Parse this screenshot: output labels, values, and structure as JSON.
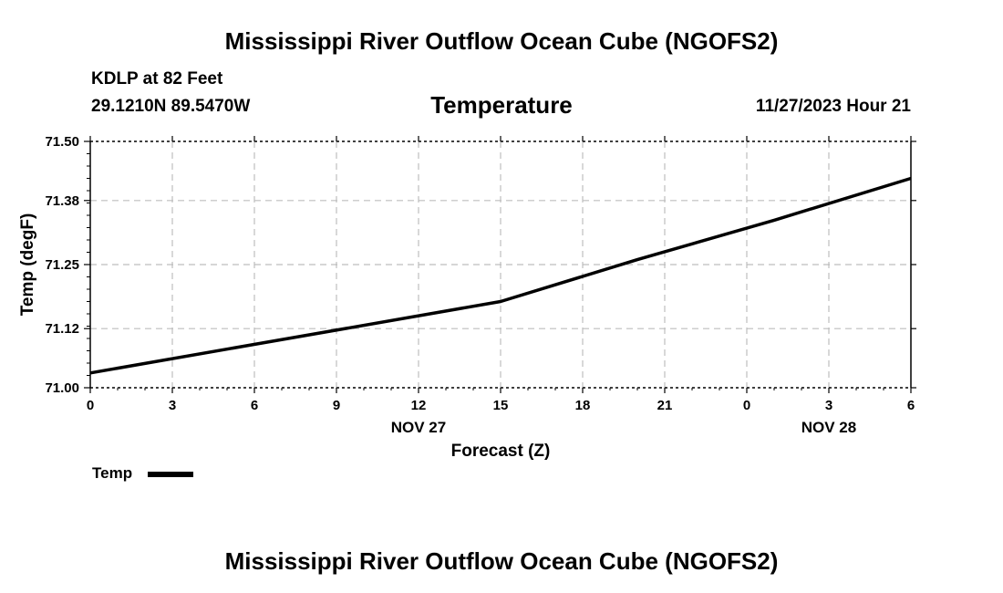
{
  "header": {
    "title": "Mississippi River Outflow Ocean Cube (NGOFS2)",
    "station": "KDLP at 82 Feet",
    "coords": "29.1210N  89.5470W",
    "panel_title": "Temperature",
    "datetime": "11/27/2023 Hour 21"
  },
  "legend": {
    "label": "Temp"
  },
  "footer": {
    "title": "Mississippi River Outflow Ocean Cube (NGOFS2)"
  },
  "chart_data": {
    "type": "line",
    "title": "Temperature",
    "xlabel": "Forecast (Z)",
    "ylabel": "Temp (degF)",
    "x": [
      0,
      3,
      6,
      9,
      12,
      15,
      18,
      21,
      24,
      27,
      30
    ],
    "xtick_labels": [
      "0",
      "3",
      "6",
      "9",
      "12",
      "15",
      "18",
      "21",
      "0",
      "3",
      "6"
    ],
    "date_labels": [
      {
        "x": 12,
        "label": "NOV 27"
      },
      {
        "x": 27,
        "label": "NOV 28"
      }
    ],
    "xlim": [
      0,
      30
    ],
    "ylim": [
      71.0,
      71.5
    ],
    "yticks": [
      71.0,
      71.12,
      71.25,
      71.38,
      71.5
    ],
    "ytick_labels": [
      "71.00",
      "71.12",
      "71.25",
      "71.38",
      "71.50"
    ],
    "grid": true,
    "legend_position": "bottom-left",
    "series": [
      {
        "name": "Temp",
        "color": "#000000",
        "x": [
          0,
          15,
          20,
          25,
          30
        ],
        "values": [
          71.03,
          71.175,
          71.26,
          71.34,
          71.425
        ]
      }
    ]
  }
}
